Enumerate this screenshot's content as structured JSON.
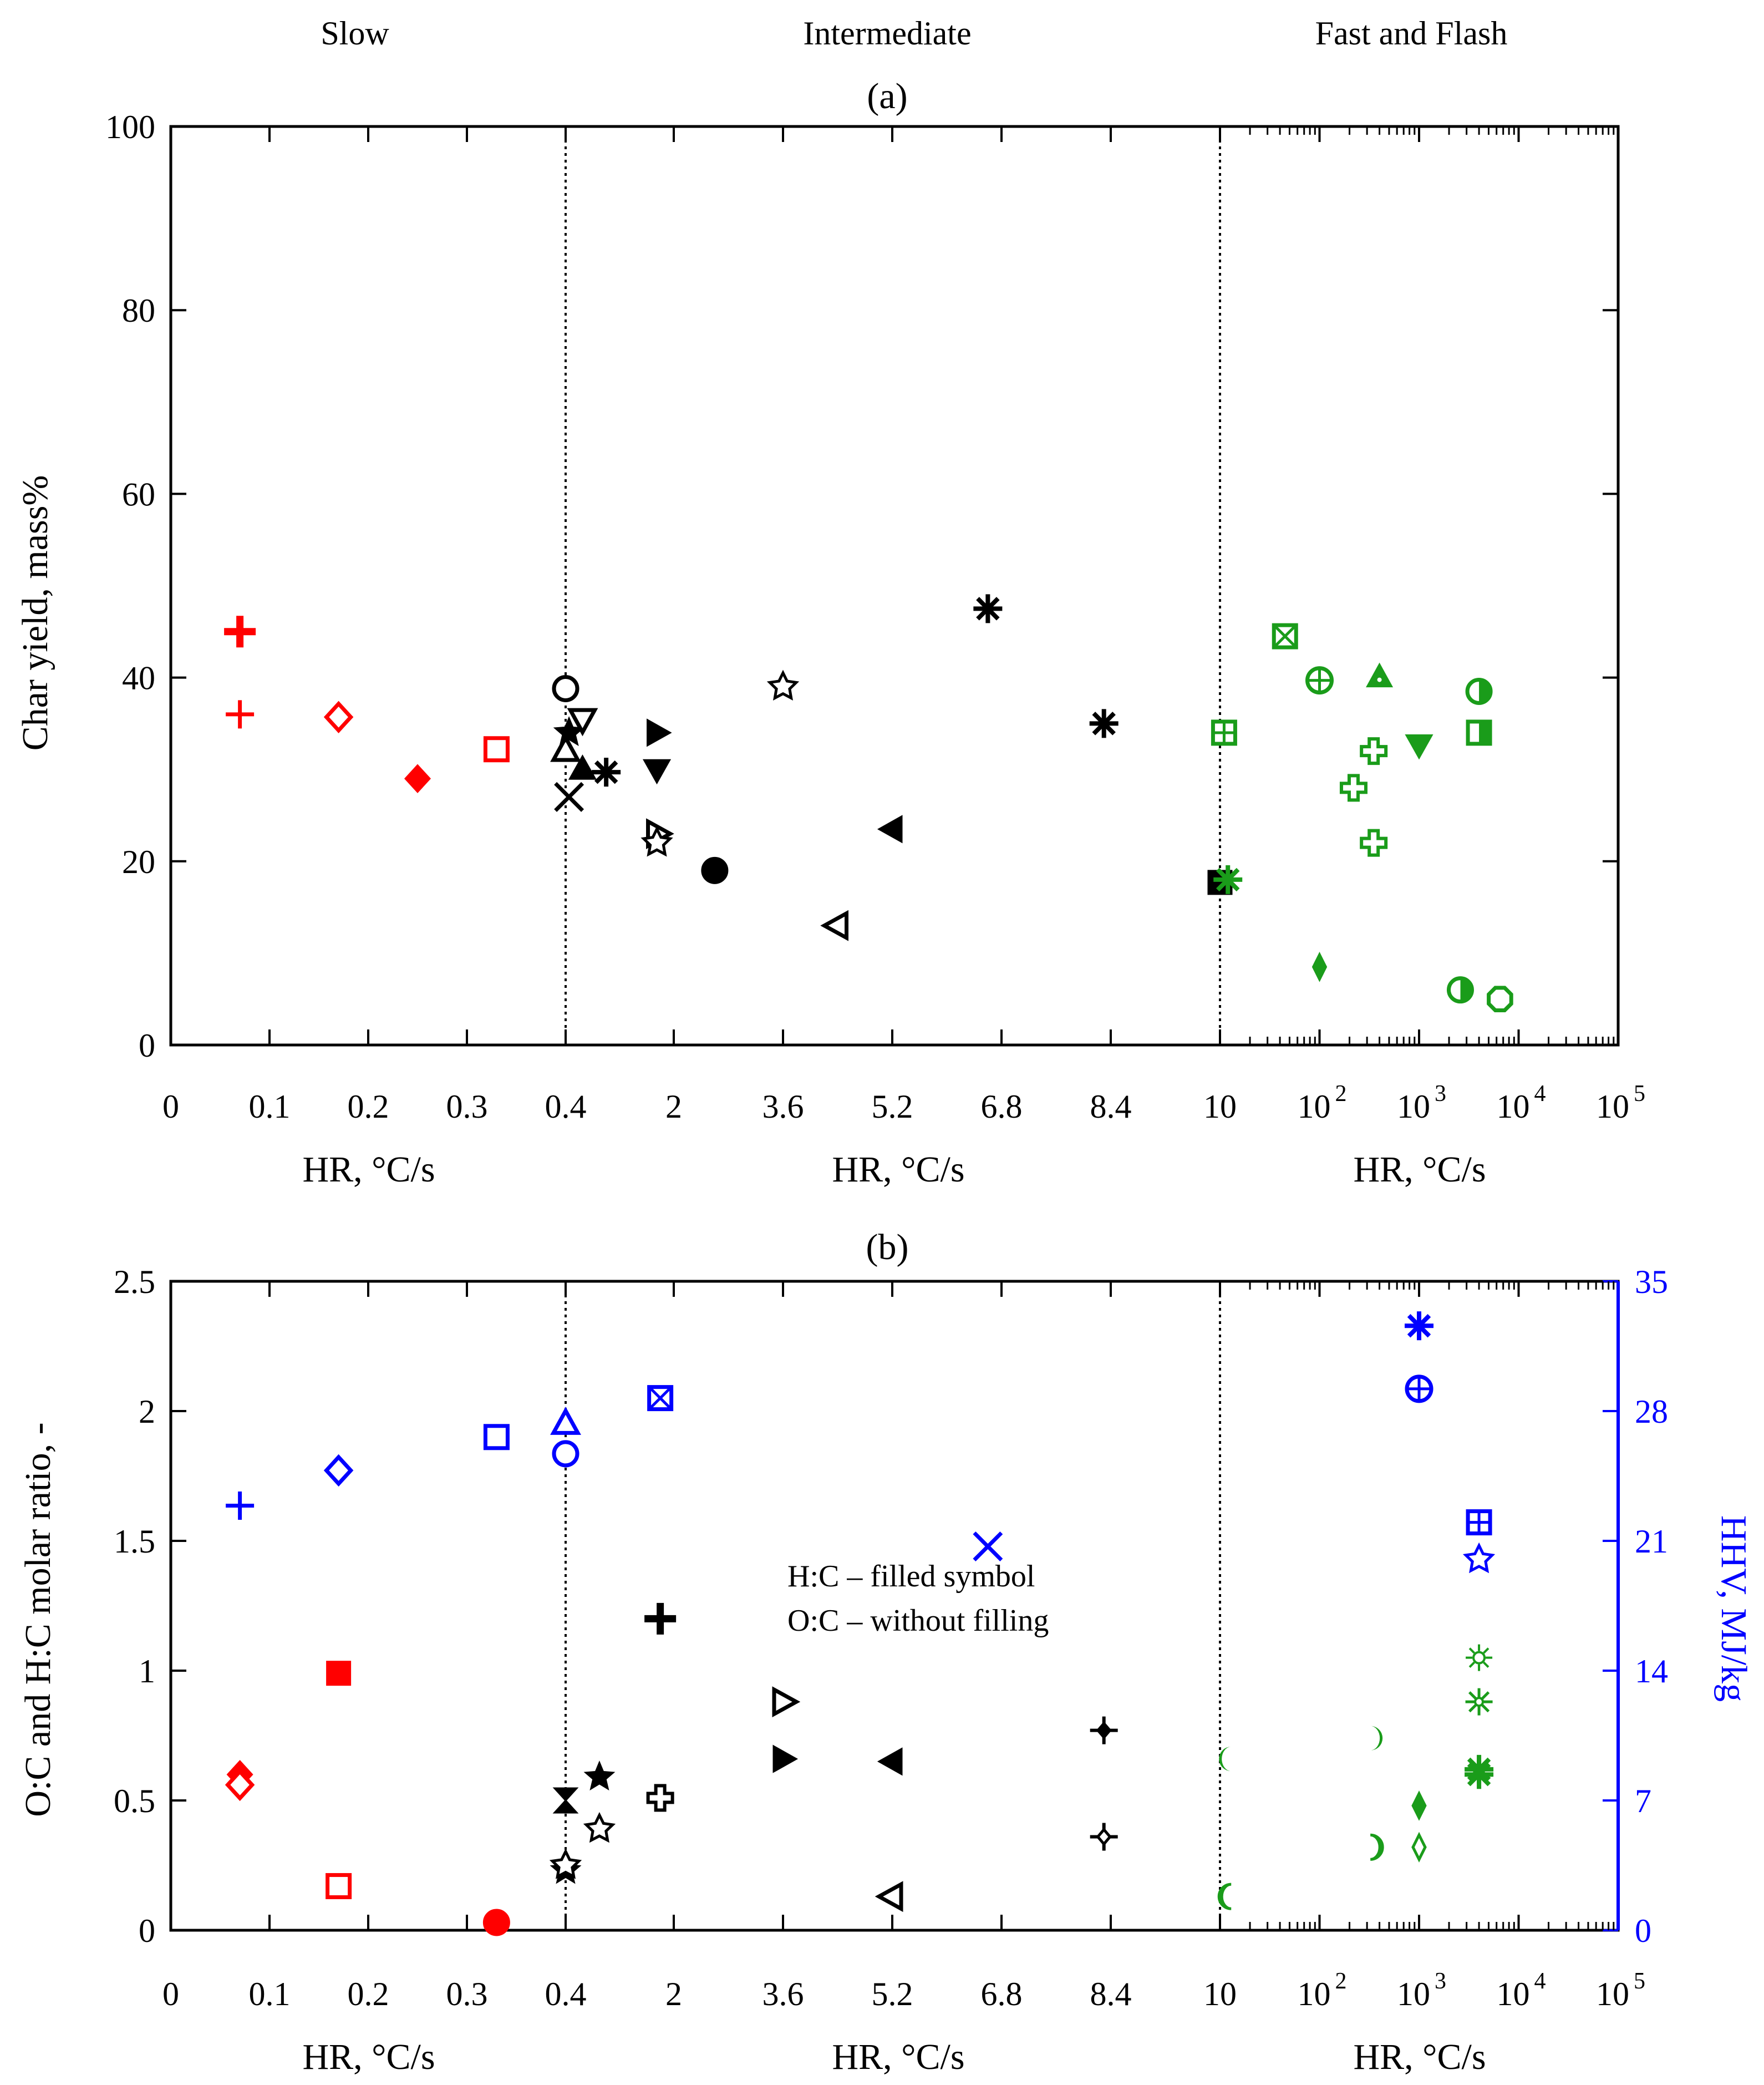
{
  "chart_data": [
    {
      "id": "a",
      "type": "scatter",
      "title": "(a)",
      "regions": [
        "Slow",
        "Intermediate",
        "Fast and Flash"
      ],
      "region_xlabels": [
        "HR, °C/s",
        "HR, °C/s",
        "HR, °C/s"
      ],
      "ylabel": "Char yield, mass%",
      "ylim": [
        0,
        100
      ],
      "yticks": [
        "0",
        "20",
        "40",
        "60",
        "80",
        "100"
      ],
      "xticks": [
        {
          "region": 0,
          "v": 0,
          "label": "0"
        },
        {
          "region": 0,
          "v": 0.1,
          "label": "0.1"
        },
        {
          "region": 0,
          "v": 0.2,
          "label": "0.2"
        },
        {
          "region": 0,
          "v": 0.3,
          "label": "0.3"
        },
        {
          "region": 0,
          "v": 0.4,
          "label": "0.4"
        },
        {
          "region": 1,
          "v": 2,
          "label": "2"
        },
        {
          "region": 1,
          "v": 3.6,
          "label": "3.6"
        },
        {
          "region": 1,
          "v": 5.2,
          "label": "5.2"
        },
        {
          "region": 1,
          "v": 6.8,
          "label": "6.8"
        },
        {
          "region": 1,
          "v": 8.4,
          "label": "8.4"
        },
        {
          "region": 1,
          "v": 10,
          "label": "10"
        },
        {
          "region": 2,
          "v": 100,
          "label": "10",
          "exp": "2"
        },
        {
          "region": 2,
          "v": 1000,
          "label": "10",
          "exp": "3"
        },
        {
          "region": 2,
          "v": 10000,
          "label": "10",
          "exp": "4"
        },
        {
          "region": 2,
          "v": 100000,
          "label": "10",
          "exp": "5"
        }
      ],
      "points": [
        {
          "region": 0,
          "x": 0.07,
          "y": 45,
          "marker": "plus-bold",
          "color": "#ff0000"
        },
        {
          "region": 0,
          "x": 0.07,
          "y": 36,
          "marker": "plus",
          "color": "#ff0000"
        },
        {
          "region": 0,
          "x": 0.17,
          "y": 35.7,
          "marker": "diamond-open",
          "color": "#ff0000"
        },
        {
          "region": 0,
          "x": 0.25,
          "y": 29,
          "marker": "diamond-filled",
          "color": "#ff0000"
        },
        {
          "region": 0,
          "x": 0.33,
          "y": 32.2,
          "marker": "square-open",
          "color": "#ff0000"
        },
        {
          "region": 1,
          "x": 0.4,
          "y": 38.8,
          "marker": "circle-open",
          "color": "#000000"
        },
        {
          "region": 1,
          "x": 0.4,
          "y": 32,
          "marker": "triangle-up-open",
          "color": "#000000"
        },
        {
          "region": 1,
          "x": 0.45,
          "y": 34,
          "marker": "star-filled",
          "color": "#000000"
        },
        {
          "region": 1,
          "x": 0.45,
          "y": 27,
          "marker": "cross",
          "color": "#000000"
        },
        {
          "region": 1,
          "x": 0.65,
          "y": 35.5,
          "marker": "triangle-down-open",
          "color": "#000000"
        },
        {
          "region": 1,
          "x": 0.65,
          "y": 30,
          "marker": "triangle-up-filled",
          "color": "#000000"
        },
        {
          "region": 1,
          "x": 1.0,
          "y": 29.7,
          "marker": "asterisk",
          "color": "#000000"
        },
        {
          "region": 1,
          "x": 1.75,
          "y": 34,
          "marker": "triangle-right-filled",
          "color": "#000000"
        },
        {
          "region": 1,
          "x": 1.75,
          "y": 30,
          "marker": "triangle-down-filled",
          "color": "#000000"
        },
        {
          "region": 1,
          "x": 1.75,
          "y": 23,
          "marker": "triangle-right-open",
          "color": "#000000"
        },
        {
          "region": 1,
          "x": 1.75,
          "y": 22,
          "marker": "star-open",
          "color": "#000000"
        },
        {
          "region": 1,
          "x": 2.6,
          "y": 19,
          "marker": "circle-filled",
          "color": "#000000"
        },
        {
          "region": 1,
          "x": 3.6,
          "y": 39,
          "marker": "star-open",
          "color": "#000000"
        },
        {
          "region": 1,
          "x": 4.4,
          "y": 13,
          "marker": "triangle-left-open",
          "color": "#000000"
        },
        {
          "region": 1,
          "x": 5.2,
          "y": 23.5,
          "marker": "triangle-left-filled",
          "color": "#000000"
        },
        {
          "region": 1,
          "x": 6.6,
          "y": 47.5,
          "marker": "asterisk",
          "color": "#000000"
        },
        {
          "region": 1,
          "x": 8.3,
          "y": 35,
          "marker": "asterisk",
          "color": "#000000"
        },
        {
          "region": 2,
          "x": 10,
          "y": 17.7,
          "marker": "square-filled",
          "color": "#000000"
        },
        {
          "region": 2,
          "x": 12,
          "y": 18,
          "marker": "asterisk",
          "color": "#1a9c1a"
        },
        {
          "region": 2,
          "x": 11,
          "y": 34,
          "marker": "square-plus",
          "color": "#1a9c1a"
        },
        {
          "region": 2,
          "x": 45,
          "y": 44.5,
          "marker": "square-x",
          "color": "#1a9c1a"
        },
        {
          "region": 2,
          "x": 100,
          "y": 39.7,
          "marker": "circle-plus",
          "color": "#1a9c1a"
        },
        {
          "region": 2,
          "x": 400,
          "y": 40,
          "marker": "triangle-up-dot",
          "color": "#1a9c1a"
        },
        {
          "region": 2,
          "x": 350,
          "y": 32,
          "marker": "plus-bold-open",
          "color": "#1a9c1a"
        },
        {
          "region": 2,
          "x": 220,
          "y": 28,
          "marker": "plus-bold-open",
          "color": "#1a9c1a"
        },
        {
          "region": 2,
          "x": 350,
          "y": 22,
          "marker": "plus-bold-open",
          "color": "#1a9c1a"
        },
        {
          "region": 2,
          "x": 1000,
          "y": 32.7,
          "marker": "triangle-down-filled",
          "color": "#1a9c1a"
        },
        {
          "region": 2,
          "x": 100,
          "y": 8.5,
          "marker": "diamond-thin",
          "color": "#1a9c1a"
        },
        {
          "region": 2,
          "x": 4000,
          "y": 38.5,
          "marker": "circle-half",
          "color": "#1a9c1a"
        },
        {
          "region": 2,
          "x": 4000,
          "y": 34,
          "marker": "square-half",
          "color": "#1a9c1a"
        },
        {
          "region": 2,
          "x": 2600,
          "y": 6,
          "marker": "circle-half",
          "color": "#1a9c1a"
        },
        {
          "region": 2,
          "x": 6500,
          "y": 5,
          "marker": "octagon-open",
          "color": "#1a9c1a"
        }
      ]
    },
    {
      "id": "b",
      "type": "scatter",
      "title": "(b)",
      "region_xlabels": [
        "HR, °C/s",
        "HR, °C/s",
        "HR, °C/s"
      ],
      "ylabel": "O:C and H:C molar ratio, -",
      "ylim": [
        0,
        2.5
      ],
      "yticks": [
        "0",
        "0.5",
        "1",
        "1.5",
        "2",
        "2.5"
      ],
      "y2label": "HHV, MJ/kg",
      "y2lim": [
        0,
        35
      ],
      "y2ticks": [
        "0",
        "7",
        "14",
        "21",
        "28",
        "35"
      ],
      "legend_note": [
        "H:C – filled symbol",
        "O:C – without filling"
      ],
      "xticks": [
        {
          "region": 0,
          "v": 0,
          "label": "0"
        },
        {
          "region": 0,
          "v": 0.1,
          "label": "0.1"
        },
        {
          "region": 0,
          "v": 0.2,
          "label": "0.2"
        },
        {
          "region": 0,
          "v": 0.3,
          "label": "0.3"
        },
        {
          "region": 0,
          "v": 0.4,
          "label": "0.4"
        },
        {
          "region": 1,
          "v": 2,
          "label": "2"
        },
        {
          "region": 1,
          "v": 3.6,
          "label": "3.6"
        },
        {
          "region": 1,
          "v": 5.2,
          "label": "5.2"
        },
        {
          "region": 1,
          "v": 6.8,
          "label": "6.8"
        },
        {
          "region": 1,
          "v": 8.4,
          "label": "8.4"
        },
        {
          "region": 1,
          "v": 10,
          "label": "10"
        },
        {
          "region": 2,
          "v": 100,
          "label": "10",
          "exp": "2"
        },
        {
          "region": 2,
          "v": 1000,
          "label": "10",
          "exp": "3"
        },
        {
          "region": 2,
          "v": 10000,
          "label": "10",
          "exp": "4"
        },
        {
          "region": 2,
          "v": 100000,
          "label": "10",
          "exp": "5"
        }
      ],
      "points": [
        {
          "region": 0,
          "x": 0.07,
          "y": 0.6,
          "marker": "diamond-filled",
          "color": "#ff0000",
          "axis": "left"
        },
        {
          "region": 0,
          "x": 0.07,
          "y": 0.56,
          "marker": "diamond-open",
          "color": "#ff0000",
          "axis": "left"
        },
        {
          "region": 0,
          "x": 0.17,
          "y": 0.99,
          "marker": "square-filled",
          "color": "#ff0000",
          "axis": "left"
        },
        {
          "region": 0,
          "x": 0.17,
          "y": 0.17,
          "marker": "square-open",
          "color": "#ff0000",
          "axis": "left"
        },
        {
          "region": 0,
          "x": 0.33,
          "y": 0.03,
          "marker": "circle-filled",
          "color": "#ff0000",
          "axis": "left"
        },
        {
          "region": 1,
          "x": 0.4,
          "y": 0.5,
          "marker": "hourglass",
          "color": "#000000",
          "axis": "left"
        },
        {
          "region": 1,
          "x": 0.4,
          "y": 0.23,
          "marker": "star-filled",
          "color": "#000000",
          "axis": "left"
        },
        {
          "region": 1,
          "x": 0.4,
          "y": 0.25,
          "marker": "star-open",
          "color": "#000000",
          "axis": "left"
        },
        {
          "region": 1,
          "x": 0.9,
          "y": 0.59,
          "marker": "star-filled",
          "color": "#000000",
          "axis": "left"
        },
        {
          "region": 1,
          "x": 0.9,
          "y": 0.39,
          "marker": "star-open",
          "color": "#000000",
          "axis": "left"
        },
        {
          "region": 1,
          "x": 1.8,
          "y": 1.2,
          "marker": "plus-bold",
          "color": "#000000",
          "axis": "left"
        },
        {
          "region": 1,
          "x": 1.8,
          "y": 0.51,
          "marker": "plus-bold-open",
          "color": "#000000",
          "axis": "left"
        },
        {
          "region": 1,
          "x": 3.6,
          "y": 0.88,
          "marker": "triangle-right-open",
          "color": "#000000",
          "axis": "left"
        },
        {
          "region": 1,
          "x": 3.6,
          "y": 0.66,
          "marker": "triangle-right-filled",
          "color": "#000000",
          "axis": "left"
        },
        {
          "region": 1,
          "x": 5.2,
          "y": 0.65,
          "marker": "triangle-left-filled",
          "color": "#000000",
          "axis": "left"
        },
        {
          "region": 1,
          "x": 5.2,
          "y": 0.13,
          "marker": "triangle-left-open",
          "color": "#000000",
          "axis": "left"
        },
        {
          "region": 1,
          "x": 8.3,
          "y": 0.77,
          "marker": "diamond-cross-filled",
          "color": "#000000",
          "axis": "left"
        },
        {
          "region": 1,
          "x": 8.3,
          "y": 0.36,
          "marker": "diamond-cross-open",
          "color": "#000000",
          "axis": "left"
        },
        {
          "region": 0,
          "x": 0.07,
          "y": 22.9,
          "marker": "plus",
          "color": "#0000ff",
          "axis": "right"
        },
        {
          "region": 0,
          "x": 0.17,
          "y": 24.8,
          "marker": "diamond-open",
          "color": "#0000ff",
          "axis": "right"
        },
        {
          "region": 0,
          "x": 0.33,
          "y": 26.6,
          "marker": "square-open",
          "color": "#0000ff",
          "axis": "right"
        },
        {
          "region": 1,
          "x": 0.4,
          "y": 27.3,
          "marker": "triangle-up-open",
          "color": "#0000ff",
          "axis": "right"
        },
        {
          "region": 1,
          "x": 0.4,
          "y": 25.7,
          "marker": "circle-open",
          "color": "#0000ff",
          "axis": "right"
        },
        {
          "region": 1,
          "x": 1.8,
          "y": 28.7,
          "marker": "square-x",
          "color": "#0000ff",
          "axis": "right"
        },
        {
          "region": 1,
          "x": 6.6,
          "y": 20.7,
          "marker": "cross",
          "color": "#0000ff",
          "axis": "right"
        },
        {
          "region": 2,
          "x": 1000,
          "y": 32.6,
          "marker": "asterisk",
          "color": "#0000ff",
          "axis": "right"
        },
        {
          "region": 2,
          "x": 1000,
          "y": 29.2,
          "marker": "circle-plus",
          "color": "#0000ff",
          "axis": "right"
        },
        {
          "region": 2,
          "x": 4000,
          "y": 22,
          "marker": "square-plus",
          "color": "#0000ff",
          "axis": "right"
        },
        {
          "region": 2,
          "x": 4000,
          "y": 20,
          "marker": "star-open",
          "color": "#0000ff",
          "axis": "right"
        },
        {
          "region": 2,
          "x": 12,
          "y": 0.66,
          "marker": "crescent-filled",
          "color": "#1a9c1a",
          "axis": "left"
        },
        {
          "region": 2,
          "x": 12,
          "y": 0.13,
          "marker": "crescent-open",
          "color": "#1a9c1a",
          "axis": "left"
        },
        {
          "region": 2,
          "x": 350,
          "y": 0.74,
          "marker": "crescent-r-filled",
          "color": "#1a9c1a",
          "axis": "left"
        },
        {
          "region": 2,
          "x": 350,
          "y": 0.32,
          "marker": "crescent-r-open",
          "color": "#1a9c1a",
          "axis": "left"
        },
        {
          "region": 2,
          "x": 1000,
          "y": 0.48,
          "marker": "diamond-thin",
          "color": "#1a9c1a",
          "axis": "left"
        },
        {
          "region": 2,
          "x": 1000,
          "y": 0.32,
          "marker": "diamond-thin-open",
          "color": "#1a9c1a",
          "axis": "left"
        },
        {
          "region": 2,
          "x": 4000,
          "y": 0.62,
          "marker": "asterisk",
          "color": "#1a9c1a",
          "axis": "left"
        },
        {
          "region": 2,
          "x": 4000,
          "y": 0.6,
          "marker": "asterisk",
          "color": "#1a9c1a",
          "axis": "left"
        },
        {
          "region": 2,
          "x": 4000,
          "y": 1.05,
          "marker": "sun-open",
          "color": "#1a9c1a",
          "axis": "left"
        },
        {
          "region": 2,
          "x": 4000,
          "y": 0.88,
          "marker": "asterisk-open",
          "color": "#1a9c1a",
          "axis": "left"
        }
      ]
    }
  ]
}
